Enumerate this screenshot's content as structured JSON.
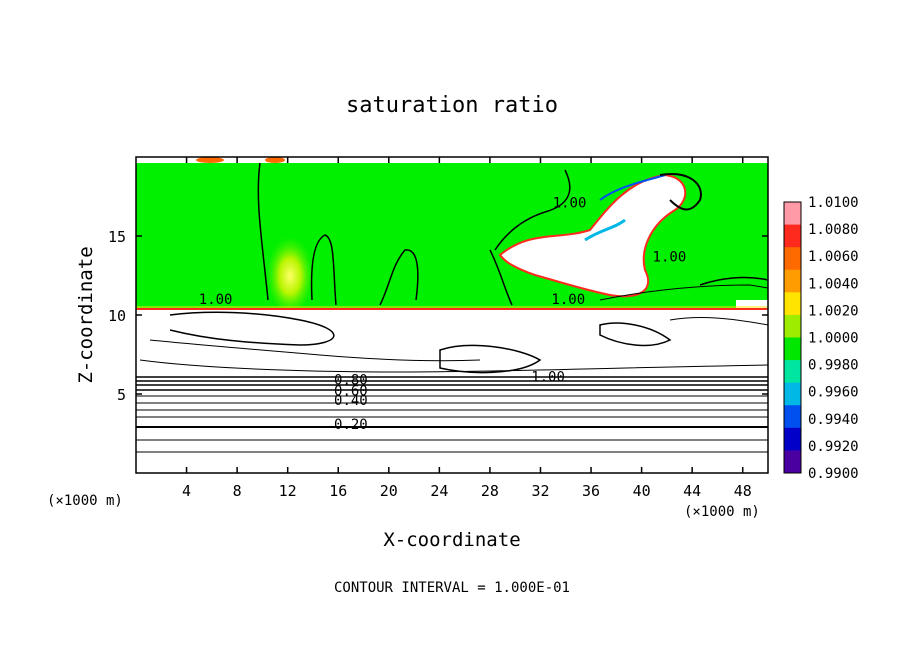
{
  "chart_data": {
    "type": "heatmap",
    "title": "saturation ratio",
    "xlabel": "X-coordinate",
    "ylabel": "Z-coordinate",
    "x_unit": "(×1000 m)",
    "x_unit_right": "(×1000 m)",
    "xlim": [
      0,
      50
    ],
    "ylim": [
      0,
      20
    ],
    "xticks": [
      4,
      8,
      12,
      16,
      20,
      24,
      28,
      32,
      36,
      40,
      44,
      48
    ],
    "yticks": [
      5,
      10,
      15
    ],
    "footer": "CONTOUR INTERVAL = 1.000E-01",
    "colorbar": {
      "levels": [
        "1.0100",
        "1.0080",
        "1.0060",
        "1.0040",
        "1.0020",
        "1.0000",
        "0.9980",
        "0.9960",
        "0.9940",
        "0.9920",
        "0.9900"
      ],
      "colors": [
        "#ff9aa6",
        "#ff2a1e",
        "#ff6a00",
        "#ff9d00",
        "#ffe400",
        "#9eec00",
        "#00e800",
        "#00e6a0",
        "#00b8e6",
        "#0050f0",
        "#0000c8",
        "#4a00a0"
      ]
    },
    "contour_labels": [
      {
        "text": "1.00",
        "x": 6.3,
        "y": 10.7
      },
      {
        "text": "1.00",
        "x": 34.3,
        "y": 16.8
      },
      {
        "text": "1.00",
        "x": 42.2,
        "y": 13.4
      },
      {
        "text": "1.00",
        "x": 34.2,
        "y": 10.7
      },
      {
        "text": "1.00",
        "x": 32.6,
        "y": 5.8
      },
      {
        "text": "0.80",
        "x": 17.0,
        "y": 5.6
      },
      {
        "text": "0.60",
        "x": 17.0,
        "y": 4.9
      },
      {
        "text": "0.40",
        "x": 17.0,
        "y": 4.3
      },
      {
        "text": "0.20",
        "x": 17.0,
        "y": 2.8
      }
    ],
    "background_color": "#00f000",
    "unsaturated_color": "#ffffff",
    "contour_color": "#000000"
  }
}
